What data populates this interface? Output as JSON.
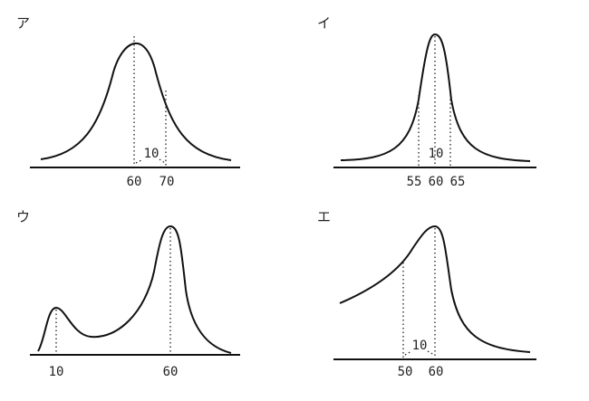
{
  "panels": [
    {
      "label": "ア",
      "ticks": [
        "60",
        "70"
      ],
      "annotation": "10"
    },
    {
      "label": "イ",
      "ticks": [
        "55",
        "60",
        "65"
      ],
      "annotation": "10"
    },
    {
      "label": "ウ",
      "ticks": [
        "10",
        "60"
      ]
    },
    {
      "label": "エ",
      "ticks": [
        "50",
        "60"
      ],
      "annotation": "10"
    }
  ]
}
